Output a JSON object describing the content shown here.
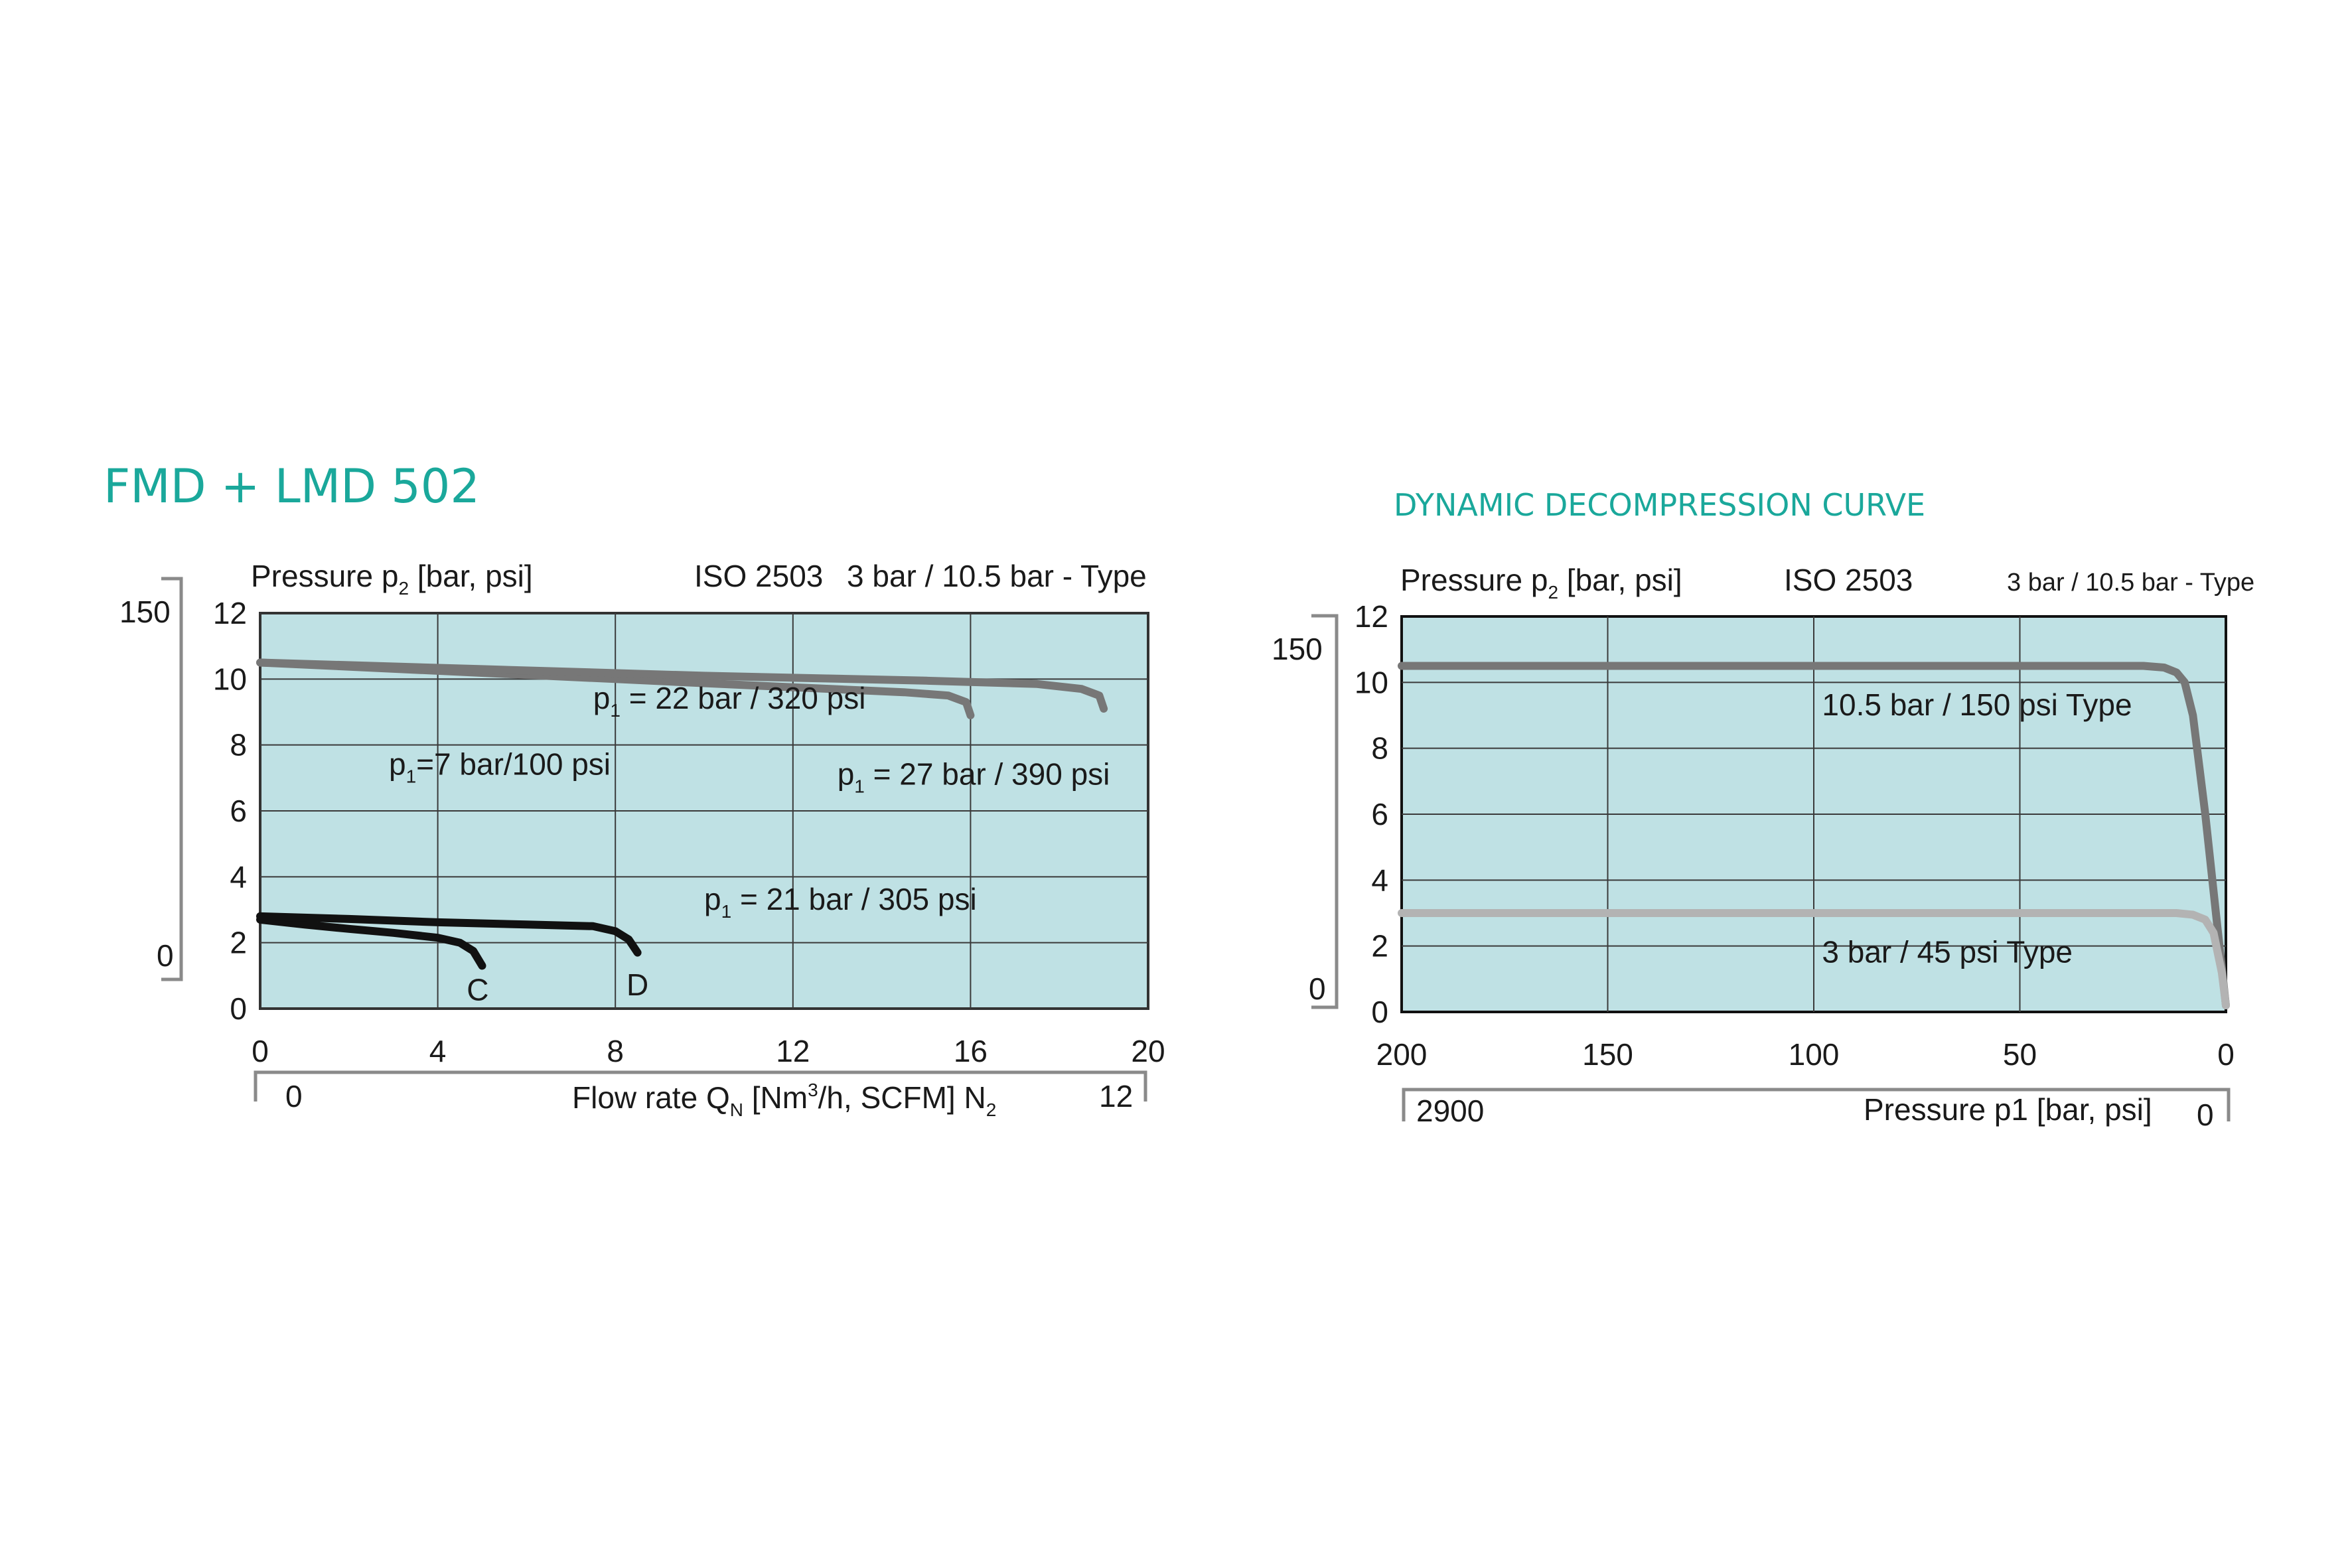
{
  "colors": {
    "teal": "#1aa89b",
    "plot_bg": "#bfe1e4",
    "dark_curve": "#111111",
    "mid_curve": "#777777",
    "light_curve": "#b3b3b3",
    "grid": "#3a3a3a",
    "bracket": "#8a8a8a"
  },
  "chart_data": [
    {
      "type": "line",
      "title": "FMD + LMD 502",
      "ylabel_prefix": "Pressure p",
      "ylabel_sub": "2",
      "ylabel_suffix": " [bar, psi]",
      "standard": "ISO 2503",
      "type_label": "3 bar / 10.5 bar - Type",
      "xlabel_prefix": "Flow rate Q",
      "xlabel_sub": "N",
      "xlabel_mid": " [Nm",
      "xlabel_sup": "3",
      "xlabel_rest": "/h, SCFM] N",
      "xlabel_sub2": "2",
      "xlim": [
        0,
        20
      ],
      "ylim": [
        0,
        12
      ],
      "x_ticks": [
        "0",
        "4",
        "8",
        "12",
        "16",
        "20"
      ],
      "y_ticks": [
        "0",
        "2",
        "4",
        "6",
        "8",
        "10",
        "12"
      ],
      "psi_axis": {
        "top": "150",
        "bottom": "0"
      },
      "scfm_axis": {
        "left": "0",
        "right": "12"
      },
      "grid": true,
      "series": [
        {
          "name": "C",
          "color": "dark",
          "x": [
            0,
            1,
            2,
            3,
            4,
            4.5,
            4.8,
            5.0
          ],
          "y": [
            2.7,
            2.55,
            2.42,
            2.3,
            2.15,
            2.0,
            1.75,
            1.3
          ]
        },
        {
          "name": "D",
          "color": "dark",
          "x": [
            0,
            2,
            4,
            6,
            7.5,
            8.0,
            8.3,
            8.5
          ],
          "y": [
            2.8,
            2.72,
            2.62,
            2.55,
            2.5,
            2.35,
            2.1,
            1.7
          ]
        },
        {
          "name": "",
          "color": "mid",
          "x": [
            0,
            4,
            8,
            12,
            14.5,
            15.5,
            15.9,
            16.0
          ],
          "y": [
            10.5,
            10.25,
            10.0,
            9.75,
            9.6,
            9.5,
            9.3,
            8.9
          ]
        },
        {
          "name": "",
          "color": "mid",
          "x": [
            0,
            5,
            10,
            15,
            17.5,
            18.5,
            18.9,
            19.0
          ],
          "y": [
            10.5,
            10.3,
            10.1,
            9.95,
            9.85,
            9.7,
            9.5,
            9.1
          ]
        }
      ],
      "annotations": [
        {
          "prefix": "p",
          "sub": "1",
          "text": " = 22 bar / 320 psi",
          "x": 7.5,
          "y": 9.1
        },
        {
          "prefix": "p",
          "sub": "1",
          "text": "=7 bar/100 psi",
          "x": 2.9,
          "y": 7.1
        },
        {
          "prefix": "p",
          "sub": "1",
          "text": " = 27 bar / 390 psi",
          "x": 13.0,
          "y": 6.8
        },
        {
          "prefix": "p",
          "sub": "1",
          "text": " = 21 bar / 305 psi",
          "x": 10.0,
          "y": 3.0
        }
      ],
      "curve_labels": [
        {
          "text": "C",
          "x": 4.9,
          "y": 0.25
        },
        {
          "text": "D",
          "x": 8.5,
          "y": 0.4
        }
      ]
    },
    {
      "type": "line",
      "title": "DYNAMIC DECOMPRESSION CURVE",
      "ylabel_prefix": "Pressure p",
      "ylabel_sub": "2",
      "ylabel_suffix": " [bar, psi]",
      "standard": "ISO 2503",
      "type_label": "3 bar / 10.5 bar - Type",
      "xlabel": "Pressure p1  [bar, psi]",
      "xlim": [
        200,
        0
      ],
      "ylim": [
        0,
        12
      ],
      "x_ticks": [
        "200",
        "150",
        "100",
        "50",
        "0"
      ],
      "y_ticks": [
        "0",
        "2",
        "4",
        "6",
        "8",
        "10",
        "12"
      ],
      "psi_axis": {
        "top": "150",
        "bottom": "0"
      },
      "psi_x_axis": {
        "left": "2900",
        "right": "0"
      },
      "grid": true,
      "series": [
        {
          "name": "10.5 bar / 150 psi Type",
          "color": "mid",
          "x": [
            200,
            100,
            20,
            15,
            12,
            10,
            8,
            5,
            2,
            0
          ],
          "y": [
            10.5,
            10.5,
            10.5,
            10.45,
            10.3,
            10.0,
            9.0,
            6.0,
            2.5,
            0.2
          ]
        },
        {
          "name": "3 bar / 45 psi Type",
          "color": "light",
          "x": [
            200,
            100,
            12,
            8,
            5,
            3,
            1,
            0
          ],
          "y": [
            3.0,
            3.0,
            3.0,
            2.95,
            2.8,
            2.4,
            1.2,
            0.2
          ]
        }
      ],
      "annotations": [
        {
          "text": "10.5 bar / 150 psi Type",
          "x": 98,
          "y": 9.0
        },
        {
          "text": "3 bar / 45 psi Type",
          "x": 98,
          "y": 1.5
        }
      ]
    }
  ]
}
